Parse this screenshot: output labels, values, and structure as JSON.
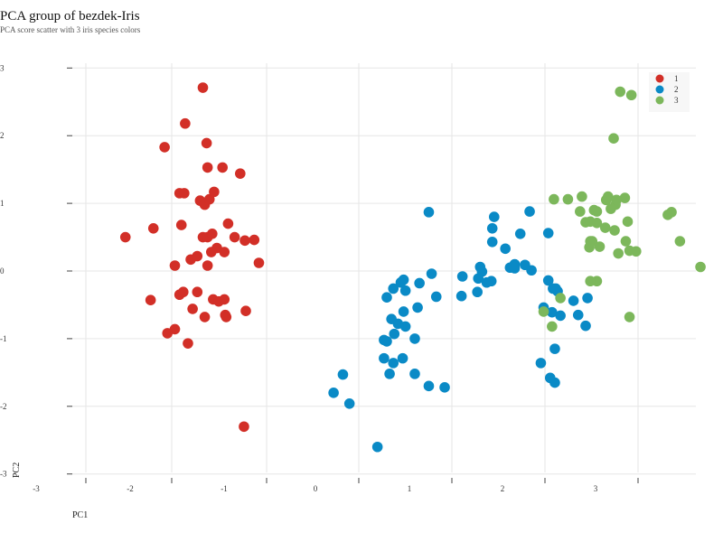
{
  "chart_data": {
    "type": "scatter",
    "title": "PCA group of bezdek-Iris",
    "subtitle": "PCA score scatter with 3 iris species colors",
    "xlabel": "PC1",
    "ylabel": "PC2",
    "xlim": [
      -3,
      4
    ],
    "ylim": [
      -3,
      3
    ],
    "x_ticks": [
      -3,
      -2,
      -1,
      0,
      1,
      2,
      3
    ],
    "y_ticks": [
      -3,
      -2,
      -1,
      0,
      1,
      2,
      3
    ],
    "grid": true,
    "legend_position": "top-right",
    "series": [
      {
        "name": "1",
        "color": "#d22f27",
        "points": [
          [
            -1.67,
            2.71
          ],
          [
            -1.86,
            2.18
          ],
          [
            -2.08,
            1.83
          ],
          [
            -1.63,
            1.89
          ],
          [
            -1.62,
            1.53
          ],
          [
            -1.46,
            1.53
          ],
          [
            -1.27,
            1.44
          ],
          [
            -1.92,
            1.15
          ],
          [
            -1.87,
            1.15
          ],
          [
            -1.7,
            1.04
          ],
          [
            -1.65,
            0.98
          ],
          [
            -1.6,
            1.06
          ],
          [
            -1.55,
            1.17
          ],
          [
            -2.5,
            0.5
          ],
          [
            -2.2,
            0.63
          ],
          [
            -1.9,
            0.68
          ],
          [
            -1.4,
            0.7
          ],
          [
            -1.67,
            0.5
          ],
          [
            -1.62,
            0.5
          ],
          [
            -1.57,
            0.55
          ],
          [
            -1.52,
            0.34
          ],
          [
            -1.58,
            0.28
          ],
          [
            -1.44,
            0.28
          ],
          [
            -1.22,
            0.45
          ],
          [
            -1.33,
            0.5
          ],
          [
            -1.12,
            0.46
          ],
          [
            -1.97,
            0.08
          ],
          [
            -1.8,
            0.17
          ],
          [
            -1.73,
            0.22
          ],
          [
            -1.62,
            0.08
          ],
          [
            -1.07,
            0.12
          ],
          [
            -2.23,
            -0.43
          ],
          [
            -1.92,
            -0.35
          ],
          [
            -1.88,
            -0.31
          ],
          [
            -1.73,
            -0.31
          ],
          [
            -1.56,
            -0.42
          ],
          [
            -1.5,
            -0.45
          ],
          [
            -1.44,
            -0.42
          ],
          [
            -1.78,
            -0.56
          ],
          [
            -1.65,
            -0.68
          ],
          [
            -1.43,
            -0.65
          ],
          [
            -1.42,
            -0.68
          ],
          [
            -1.21,
            -0.59
          ],
          [
            -1.97,
            -0.86
          ],
          [
            -2.05,
            -0.92
          ],
          [
            -1.83,
            -1.07
          ],
          [
            -1.23,
            -2.3
          ]
        ]
      },
      {
        "name": "2",
        "color": "#0a8ac6",
        "points": [
          [
            0.75,
            0.87
          ],
          [
            1.45,
            0.8
          ],
          [
            1.83,
            0.88
          ],
          [
            1.43,
            0.63
          ],
          [
            1.73,
            0.55
          ],
          [
            2.03,
            0.56
          ],
          [
            1.43,
            0.43
          ],
          [
            1.57,
            0.33
          ],
          [
            1.67,
            0.1
          ],
          [
            1.62,
            0.05
          ],
          [
            1.67,
            0.04
          ],
          [
            1.78,
            0.09
          ],
          [
            1.85,
            0.01
          ],
          [
            1.3,
            0.06
          ],
          [
            1.32,
            -0.01
          ],
          [
            1.28,
            -0.11
          ],
          [
            1.37,
            -0.17
          ],
          [
            1.42,
            -0.15
          ],
          [
            1.11,
            -0.08
          ],
          [
            0.48,
            -0.13
          ],
          [
            0.45,
            -0.17
          ],
          [
            0.78,
            -0.04
          ],
          [
            0.65,
            -0.18
          ],
          [
            0.5,
            -0.29
          ],
          [
            0.37,
            -0.26
          ],
          [
            0.3,
            -0.39
          ],
          [
            0.83,
            -0.38
          ],
          [
            1.1,
            -0.37
          ],
          [
            0.63,
            -0.54
          ],
          [
            0.48,
            -0.6
          ],
          [
            2.03,
            -0.14
          ],
          [
            2.11,
            -0.26
          ],
          [
            2.13,
            -0.3
          ],
          [
            2.08,
            -0.26
          ],
          [
            1.27,
            -0.31
          ],
          [
            2.3,
            -0.44
          ],
          [
            2.45,
            -0.4
          ],
          [
            2.35,
            -0.65
          ],
          [
            2.43,
            -0.81
          ],
          [
            1.98,
            -0.54
          ],
          [
            2.07,
            -0.61
          ],
          [
            2.16,
            -0.66
          ],
          [
            0.35,
            -0.71
          ],
          [
            0.42,
            -0.78
          ],
          [
            0.5,
            -0.82
          ],
          [
            0.38,
            -0.93
          ],
          [
            0.6,
            -1.0
          ],
          [
            0.27,
            -1.02
          ],
          [
            0.3,
            -1.04
          ],
          [
            0.47,
            -1.29
          ],
          [
            0.27,
            -1.29
          ],
          [
            0.37,
            -1.36
          ],
          [
            2.1,
            -1.15
          ],
          [
            1.95,
            -1.36
          ],
          [
            2.05,
            -1.58
          ],
          [
            2.1,
            -1.65
          ],
          [
            0.6,
            -1.52
          ],
          [
            0.33,
            -1.52
          ],
          [
            0.75,
            -1.7
          ],
          [
            0.92,
            -1.72
          ],
          [
            -0.17,
            -1.53
          ],
          [
            -0.27,
            -1.8
          ],
          [
            -0.1,
            -1.96
          ],
          [
            0.2,
            -2.6
          ]
        ]
      },
      {
        "name": "3",
        "color": "#7cb75b",
        "points": [
          [
            2.8,
            2.65
          ],
          [
            2.92,
            2.6
          ],
          [
            2.73,
            1.96
          ],
          [
            2.75,
            0.98
          ],
          [
            2.65,
            1.05
          ],
          [
            2.67,
            1.1
          ],
          [
            2.85,
            1.08
          ],
          [
            2.76,
            1.05
          ],
          [
            2.7,
            0.92
          ],
          [
            2.52,
            0.9
          ],
          [
            2.55,
            0.88
          ],
          [
            2.37,
            0.88
          ],
          [
            2.09,
            1.06
          ],
          [
            2.24,
            1.06
          ],
          [
            2.39,
            1.1
          ],
          [
            3.31,
            0.83
          ],
          [
            3.35,
            0.87
          ],
          [
            2.88,
            0.73
          ],
          [
            2.43,
            0.72
          ],
          [
            2.55,
            0.71
          ],
          [
            2.48,
            0.73
          ],
          [
            2.64,
            0.64
          ],
          [
            2.74,
            0.6
          ],
          [
            3.44,
            0.44
          ],
          [
            2.48,
            0.44
          ],
          [
            2.47,
            0.35
          ],
          [
            2.9,
            0.3
          ],
          [
            2.86,
            0.44
          ],
          [
            2.58,
            0.36
          ],
          [
            2.5,
            0.44
          ],
          [
            2.78,
            0.26
          ],
          [
            2.97,
            0.29
          ],
          [
            2.55,
            -0.15
          ],
          [
            2.48,
            -0.15
          ],
          [
            2.16,
            -0.4
          ],
          [
            1.98,
            -0.6
          ],
          [
            2.07,
            -0.82
          ],
          [
            3.66,
            0.06
          ],
          [
            2.9,
            -0.68
          ]
        ]
      }
    ]
  },
  "colors": {
    "grid": "#e6e6e6",
    "axis": "#444444"
  }
}
